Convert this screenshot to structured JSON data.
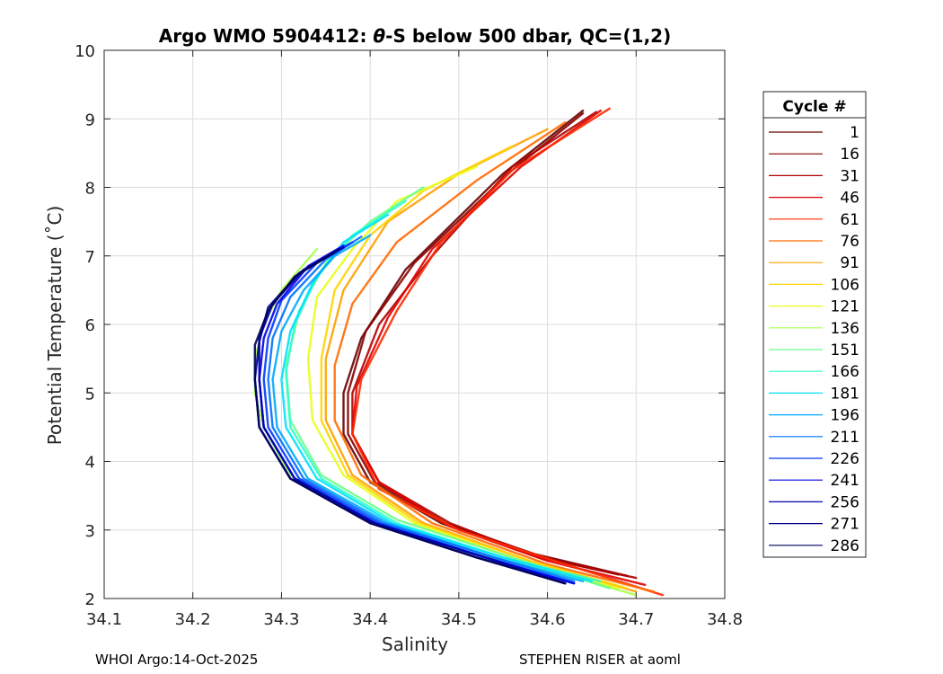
{
  "chart_data": {
    "type": "line",
    "title_prefix": "Argo WMO 5904412: ",
    "title_theta": "θ",
    "title_suffix": "-S below 500 dbar,  QC=(1,2)",
    "xlabel": "Salinity",
    "ylabel": "Potential Temperature (˚C)",
    "xlim": [
      34.1,
      34.8
    ],
    "ylim": [
      2,
      10
    ],
    "x_ticks": [
      34.1,
      34.2,
      34.3,
      34.4,
      34.5,
      34.6,
      34.7,
      34.8
    ],
    "x_tick_labels": [
      "34.1",
      "34.2",
      "34.3",
      "34.4",
      "34.5",
      "34.6",
      "34.7",
      "34.8"
    ],
    "y_ticks": [
      2,
      3,
      4,
      5,
      6,
      7,
      8,
      9,
      10
    ],
    "y_tick_labels": [
      "2",
      "3",
      "4",
      "5",
      "6",
      "7",
      "8",
      "9",
      "10"
    ],
    "grid": true,
    "legend_title": "Cycle #",
    "legend_position": "right",
    "series": [
      {
        "name": "1",
        "color": "#6a0000",
        "points": [
          [
            34.64,
            9.12
          ],
          [
            34.55,
            8.2
          ],
          [
            34.44,
            6.8
          ],
          [
            34.39,
            5.8
          ],
          [
            34.37,
            5.0
          ],
          [
            34.37,
            4.4
          ],
          [
            34.4,
            3.7
          ],
          [
            34.48,
            3.1
          ],
          [
            34.58,
            2.65
          ],
          [
            34.68,
            2.35
          ]
        ]
      },
      {
        "name": "16",
        "color": "#8a0000",
        "points": [
          [
            34.64,
            9.08
          ],
          [
            34.56,
            8.25
          ],
          [
            34.45,
            6.9
          ],
          [
            34.395,
            5.9
          ],
          [
            34.375,
            5.0
          ],
          [
            34.375,
            4.4
          ],
          [
            34.405,
            3.7
          ],
          [
            34.485,
            3.1
          ],
          [
            34.585,
            2.65
          ],
          [
            34.69,
            2.33
          ]
        ]
      },
      {
        "name": "31",
        "color": "#b00000",
        "points": [
          [
            34.655,
            9.1
          ],
          [
            34.56,
            8.3
          ],
          [
            34.47,
            7.0
          ],
          [
            34.41,
            6.0
          ],
          [
            34.38,
            5.0
          ],
          [
            34.38,
            4.4
          ],
          [
            34.41,
            3.7
          ],
          [
            34.49,
            3.1
          ],
          [
            34.59,
            2.6
          ],
          [
            34.7,
            2.3
          ]
        ]
      },
      {
        "name": "46",
        "color": "#e00000",
        "points": [
          [
            34.66,
            9.12
          ],
          [
            34.57,
            8.3
          ],
          [
            34.47,
            7.1
          ],
          [
            34.42,
            6.1
          ],
          [
            34.385,
            5.1
          ],
          [
            34.38,
            4.4
          ],
          [
            34.41,
            3.7
          ],
          [
            34.49,
            3.05
          ],
          [
            34.6,
            2.55
          ],
          [
            34.71,
            2.2
          ]
        ]
      },
      {
        "name": "61",
        "color": "#ff2a00",
        "points": [
          [
            34.67,
            9.15
          ],
          [
            34.56,
            8.25
          ],
          [
            34.48,
            7.2
          ],
          [
            34.43,
            6.2
          ],
          [
            34.39,
            5.2
          ],
          [
            34.38,
            4.4
          ],
          [
            34.41,
            3.6
          ],
          [
            34.5,
            3.0
          ],
          [
            34.62,
            2.5
          ],
          [
            34.73,
            2.05
          ]
        ]
      },
      {
        "name": "76",
        "color": "#ff6a00",
        "points": [
          [
            34.62,
            8.95
          ],
          [
            34.52,
            8.1
          ],
          [
            34.43,
            7.2
          ],
          [
            34.38,
            6.3
          ],
          [
            34.36,
            5.4
          ],
          [
            34.36,
            4.6
          ],
          [
            34.39,
            3.8
          ],
          [
            34.47,
            3.1
          ],
          [
            34.6,
            2.5
          ],
          [
            34.72,
            2.1
          ]
        ]
      },
      {
        "name": "91",
        "color": "#ffa000",
        "points": [
          [
            34.6,
            8.85
          ],
          [
            34.5,
            8.2
          ],
          [
            34.42,
            7.5
          ],
          [
            34.37,
            6.5
          ],
          [
            34.35,
            5.5
          ],
          [
            34.35,
            4.6
          ],
          [
            34.38,
            3.8
          ],
          [
            34.46,
            3.1
          ],
          [
            34.58,
            2.55
          ],
          [
            34.7,
            2.1
          ]
        ]
      },
      {
        "name": "106",
        "color": "#ffd400",
        "points": [
          [
            34.56,
            8.6
          ],
          [
            34.46,
            7.95
          ],
          [
            34.4,
            7.3
          ],
          [
            34.36,
            6.5
          ],
          [
            34.345,
            5.5
          ],
          [
            34.345,
            4.6
          ],
          [
            34.375,
            3.8
          ],
          [
            34.455,
            3.1
          ],
          [
            34.58,
            2.55
          ],
          [
            34.69,
            2.15
          ]
        ]
      },
      {
        "name": "121",
        "color": "#e8ff1a",
        "points": [
          [
            34.52,
            8.3
          ],
          [
            34.43,
            7.8
          ],
          [
            34.38,
            7.1
          ],
          [
            34.34,
            6.4
          ],
          [
            34.33,
            5.5
          ],
          [
            34.335,
            4.6
          ],
          [
            34.37,
            3.8
          ],
          [
            34.45,
            3.1
          ],
          [
            34.57,
            2.55
          ],
          [
            34.68,
            2.15
          ]
        ]
      },
      {
        "name": "136",
        "color": "#a8ff50",
        "points": [
          [
            34.34,
            7.1
          ],
          [
            34.3,
            6.5
          ],
          [
            34.28,
            6.0
          ],
          [
            34.27,
            5.5
          ],
          [
            34.27,
            5.0
          ],
          [
            34.28,
            4.5
          ],
          [
            34.31,
            3.8
          ],
          [
            34.39,
            3.2
          ],
          [
            34.5,
            2.7
          ],
          [
            34.62,
            2.35
          ],
          [
            34.7,
            2.05
          ]
        ]
      },
      {
        "name": "151",
        "color": "#6cff8b",
        "points": [
          [
            34.46,
            8.0
          ],
          [
            34.4,
            7.5
          ],
          [
            34.35,
            6.9
          ],
          [
            34.32,
            6.2
          ],
          [
            34.305,
            5.4
          ],
          [
            34.31,
            4.6
          ],
          [
            34.345,
            3.8
          ],
          [
            34.43,
            3.15
          ],
          [
            34.56,
            2.6
          ],
          [
            34.67,
            2.15
          ]
        ]
      },
      {
        "name": "166",
        "color": "#2effcc",
        "points": [
          [
            34.44,
            7.8
          ],
          [
            34.38,
            7.3
          ],
          [
            34.34,
            6.7
          ],
          [
            34.315,
            6.0
          ],
          [
            34.305,
            5.3
          ],
          [
            34.31,
            4.5
          ],
          [
            34.345,
            3.75
          ],
          [
            34.43,
            3.1
          ],
          [
            34.55,
            2.6
          ],
          [
            34.66,
            2.25
          ]
        ]
      },
      {
        "name": "181",
        "color": "#00e0ff",
        "points": [
          [
            34.42,
            7.6
          ],
          [
            34.37,
            7.2
          ],
          [
            34.335,
            6.6
          ],
          [
            34.31,
            5.9
          ],
          [
            34.3,
            5.2
          ],
          [
            34.305,
            4.5
          ],
          [
            34.34,
            3.75
          ],
          [
            34.425,
            3.1
          ],
          [
            34.55,
            2.6
          ],
          [
            34.65,
            2.25
          ]
        ]
      },
      {
        "name": "196",
        "color": "#00a8ff",
        "points": [
          [
            34.4,
            7.3
          ],
          [
            34.36,
            7.0
          ],
          [
            34.325,
            6.5
          ],
          [
            34.3,
            5.9
          ],
          [
            34.29,
            5.2
          ],
          [
            34.295,
            4.5
          ],
          [
            34.33,
            3.75
          ],
          [
            34.42,
            3.1
          ],
          [
            34.54,
            2.6
          ],
          [
            34.64,
            2.25
          ]
        ]
      },
      {
        "name": "211",
        "color": "#0070ff",
        "points": [
          [
            34.39,
            7.28
          ],
          [
            34.35,
            6.95
          ],
          [
            34.31,
            6.4
          ],
          [
            34.29,
            5.8
          ],
          [
            34.285,
            5.2
          ],
          [
            34.29,
            4.5
          ],
          [
            34.325,
            3.75
          ],
          [
            34.415,
            3.1
          ],
          [
            34.54,
            2.6
          ],
          [
            34.63,
            2.25
          ]
        ]
      },
      {
        "name": "226",
        "color": "#0038ff",
        "points": [
          [
            34.38,
            7.2
          ],
          [
            34.34,
            6.9
          ],
          [
            34.3,
            6.35
          ],
          [
            34.285,
            5.8
          ],
          [
            34.28,
            5.2
          ],
          [
            34.285,
            4.5
          ],
          [
            34.32,
            3.75
          ],
          [
            34.41,
            3.1
          ],
          [
            34.53,
            2.6
          ],
          [
            34.63,
            2.22
          ]
        ]
      },
      {
        "name": "241",
        "color": "#0000e6",
        "points": [
          [
            34.37,
            7.15
          ],
          [
            34.33,
            6.85
          ],
          [
            34.295,
            6.3
          ],
          [
            34.28,
            5.8
          ],
          [
            34.275,
            5.2
          ],
          [
            34.28,
            4.5
          ],
          [
            34.315,
            3.75
          ],
          [
            34.405,
            3.1
          ],
          [
            34.53,
            2.6
          ],
          [
            34.63,
            2.22
          ]
        ]
      },
      {
        "name": "256",
        "color": "#0000b4",
        "points": [
          [
            34.37,
            7.12
          ],
          [
            34.325,
            6.8
          ],
          [
            34.29,
            6.3
          ],
          [
            34.275,
            5.8
          ],
          [
            34.275,
            5.2
          ],
          [
            34.28,
            4.5
          ],
          [
            34.315,
            3.75
          ],
          [
            34.405,
            3.1
          ],
          [
            34.53,
            2.6
          ],
          [
            34.62,
            2.22
          ]
        ]
      },
      {
        "name": "271",
        "color": "#000088",
        "points": [
          [
            34.365,
            7.1
          ],
          [
            34.32,
            6.75
          ],
          [
            34.285,
            6.25
          ],
          [
            34.275,
            5.75
          ],
          [
            34.27,
            5.2
          ],
          [
            34.275,
            4.5
          ],
          [
            34.31,
            3.75
          ],
          [
            34.4,
            3.1
          ],
          [
            34.52,
            2.6
          ],
          [
            34.62,
            2.22
          ]
        ]
      },
      {
        "name": "286",
        "color": "#00005a",
        "points": [
          [
            34.36,
            7.05
          ],
          [
            34.315,
            6.7
          ],
          [
            34.285,
            6.2
          ],
          [
            34.27,
            5.7
          ],
          [
            34.27,
            5.2
          ],
          [
            34.275,
            4.5
          ],
          [
            34.31,
            3.75
          ],
          [
            34.4,
            3.1
          ],
          [
            34.52,
            2.6
          ],
          [
            34.62,
            2.22
          ]
        ]
      }
    ]
  },
  "footer": {
    "left": "WHOI Argo:14-Oct-2025",
    "right": "STEPHEN RISER at aoml"
  }
}
